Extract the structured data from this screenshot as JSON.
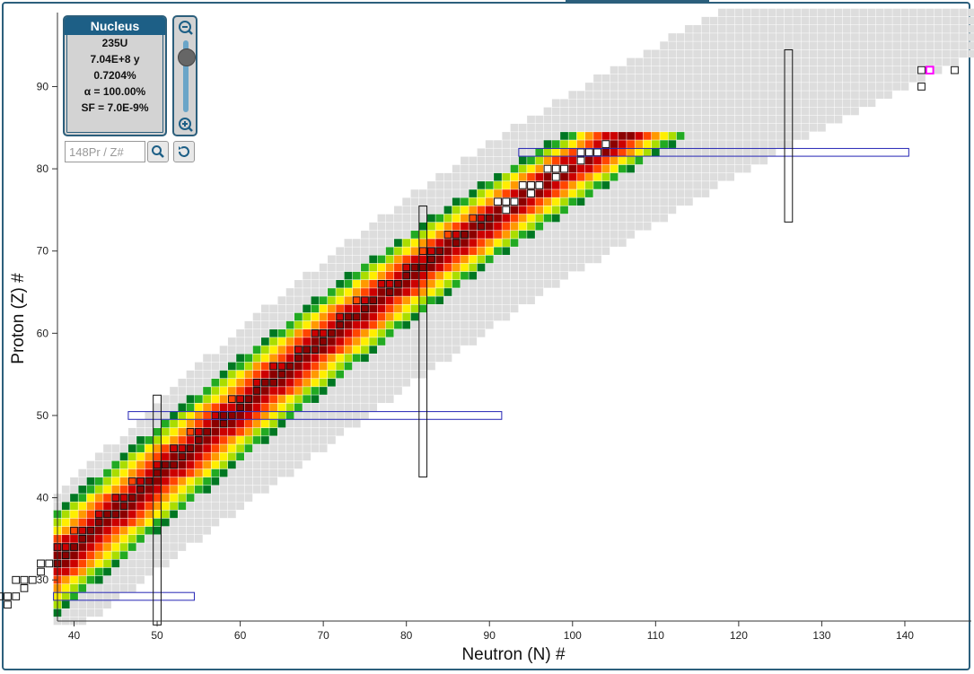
{
  "info_panel": {
    "title": "Nucleus",
    "nuclide": "235U",
    "half_life": "7.04E+8 y",
    "abundance": "0.7204%",
    "alpha": "α = 100.00%",
    "sf": "SF = 7.0E-9%"
  },
  "search": {
    "placeholder": "148Pr / Z#"
  },
  "icons": {
    "zoom_out": "zoom-out-icon",
    "zoom_in": "zoom-in-icon",
    "search": "search-icon",
    "reset": "reset-icon"
  },
  "zoom_level": 0.5,
  "colors": {
    "accent": "#1d5f86",
    "magic_box": "#2424b4",
    "highlight": "#ff00ff"
  },
  "chart_data": {
    "type": "heatmap",
    "title": "",
    "xlabel": "Neutron (N) #",
    "ylabel": "Proton (Z) #",
    "xlim": [
      38,
      148
    ],
    "ylim": [
      25,
      99
    ],
    "xticks": [
      40,
      50,
      60,
      70,
      80,
      90,
      100,
      110,
      120,
      130,
      140
    ],
    "yticks": [
      30,
      40,
      50,
      60,
      70,
      80,
      90
    ],
    "selected_nucleus": {
      "Z": 92,
      "N": 143
    },
    "magic_proton": [
      {
        "Z": 28,
        "N_range": [
          38,
          54
        ]
      },
      {
        "Z": 50,
        "N_range": [
          47,
          91
        ]
      },
      {
        "Z": 82,
        "N_range": [
          94,
          140
        ]
      }
    ],
    "magic_neutron": [
      {
        "N": 50,
        "Z_range": [
          25,
          52
        ]
      },
      {
        "N": 82,
        "Z_range": [
          43,
          75
        ]
      },
      {
        "N": 126,
        "Z_range": [
          74,
          94
        ]
      }
    ]
  }
}
